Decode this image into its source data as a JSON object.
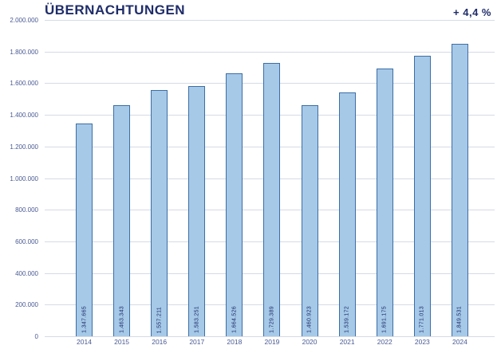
{
  "header": {
    "title": "ÜBERNACHTUNGEN",
    "delta_label": "+ 4,4 %"
  },
  "chart_data": {
    "type": "bar",
    "title": "ÜBERNACHTUNGEN",
    "annotation": "+ 4,4 %",
    "categories": [
      "2014",
      "2015",
      "2016",
      "2017",
      "2018",
      "2019",
      "2020",
      "2021",
      "2022",
      "2023",
      "2024"
    ],
    "values": [
      1347665,
      1463343,
      1557211,
      1583251,
      1664526,
      1729389,
      1460923,
      1539172,
      1691175,
      1771013,
      1849531
    ],
    "value_labels": [
      "1.347.665",
      "1.463.343",
      "1.557.211",
      "1.583.251",
      "1.664.526",
      "1.729.389",
      "1.460.923",
      "1.539.172",
      "1.691.175",
      "1.771.013",
      "1.849.531"
    ],
    "xlabel": "",
    "ylabel": "",
    "ylim": [
      0,
      2000000
    ],
    "y_tick_step": 200000,
    "y_tick_labels": [
      "0",
      "200.000",
      "400.000",
      "600.000",
      "800.000",
      "1.000.000",
      "1.200.000",
      "1.400.000",
      "1.600.000",
      "1.800.000",
      "2.000.000"
    ],
    "grid": true,
    "legend": "none",
    "colors": {
      "bar_fill": "#a6c9e8",
      "bar_border": "#3c6ea5",
      "grid": "#d5dae6",
      "text": "#4a5a94",
      "text_strong": "#1f2d69"
    }
  }
}
